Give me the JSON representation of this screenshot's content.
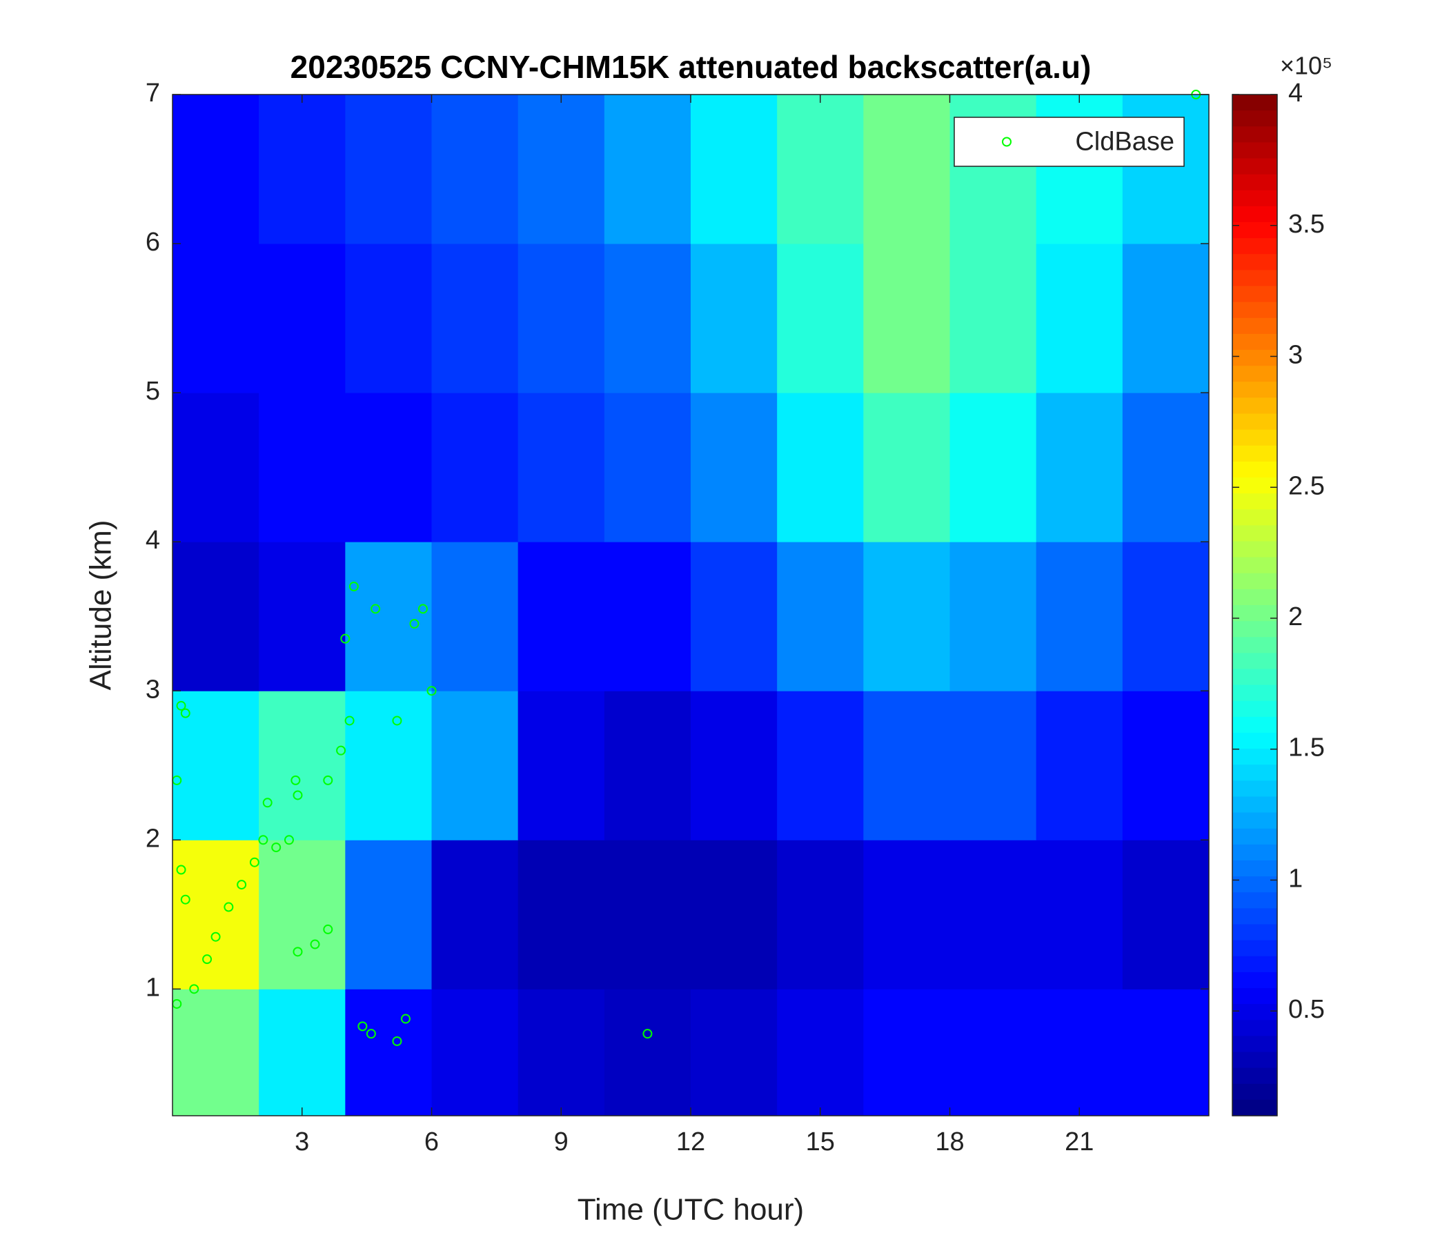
{
  "chart_data": {
    "type": "heatmap",
    "title": "20230525 CCNY-CHM15K attenuated backscatter(a.u)",
    "xlabel": "Time (UTC hour)",
    "ylabel": "Altitude (km)",
    "colormap": "jet",
    "clim": [
      0.1,
      4
    ],
    "cticks": [
      0.5,
      1,
      1.5,
      2,
      2.5,
      3,
      3.5,
      4
    ],
    "colorbar_multiplier": "×10⁵",
    "xlim": [
      0,
      24
    ],
    "xticks": [
      3,
      6,
      9,
      12,
      15,
      18,
      21
    ],
    "ylim": [
      0.15,
      7
    ],
    "yticks": [
      1,
      2,
      3,
      4,
      5,
      6,
      7
    ],
    "x_edges": [
      0,
      2,
      4,
      6,
      8,
      10,
      12,
      14,
      16,
      18,
      20,
      22,
      24
    ],
    "y_edges": [
      0.15,
      1,
      2,
      3,
      4,
      5,
      6,
      7
    ],
    "z": [
      [
        2.0,
        1.5,
        0.6,
        0.5,
        0.4,
        0.35,
        0.4,
        0.5,
        0.6,
        0.6,
        0.6,
        0.6
      ],
      [
        2.5,
        2.0,
        1.0,
        0.4,
        0.3,
        0.3,
        0.3,
        0.4,
        0.5,
        0.5,
        0.5,
        0.4
      ],
      [
        1.5,
        1.8,
        1.5,
        1.2,
        0.5,
        0.4,
        0.5,
        0.7,
        0.9,
        0.9,
        0.7,
        0.6
      ],
      [
        0.4,
        0.5,
        1.2,
        1.0,
        0.6,
        0.6,
        0.8,
        1.1,
        1.3,
        1.2,
        1.0,
        0.8
      ],
      [
        0.5,
        0.6,
        0.6,
        0.7,
        0.8,
        0.9,
        1.1,
        1.5,
        1.8,
        1.6,
        1.3,
        1.0
      ],
      [
        0.6,
        0.6,
        0.7,
        0.8,
        0.9,
        1.0,
        1.3,
        1.7,
        2.0,
        1.8,
        1.5,
        1.2
      ],
      [
        0.6,
        0.7,
        0.8,
        0.9,
        1.0,
        1.2,
        1.5,
        1.8,
        2.0,
        1.8,
        1.6,
        1.4
      ]
    ],
    "legend": "top-right",
    "series": [
      {
        "name": "CldBase",
        "color": "#00ff00",
        "x": [
          0.1,
          0.2,
          0.3,
          0.2,
          0.3,
          0.1,
          0.5,
          0.8,
          1.0,
          1.3,
          1.6,
          1.9,
          2.1,
          2.2,
          2.4,
          2.7,
          2.85,
          2.9,
          2.9,
          3.3,
          3.6,
          3.6,
          3.9,
          4.1,
          4.2,
          4.0,
          4.4,
          4.6,
          4.7,
          5.2,
          5.4,
          5.2,
          5.6,
          5.8,
          6.0,
          11.0,
          23.7
        ],
        "y": [
          2.4,
          2.9,
          2.85,
          1.8,
          1.6,
          0.9,
          1.0,
          1.2,
          1.35,
          1.55,
          1.7,
          1.85,
          2.0,
          2.25,
          1.95,
          2.0,
          2.4,
          2.3,
          1.25,
          1.3,
          1.4,
          2.4,
          2.6,
          2.8,
          3.7,
          3.35,
          0.75,
          0.7,
          3.55,
          0.65,
          0.8,
          2.8,
          3.45,
          3.55,
          3.0,
          0.7,
          7.0
        ]
      }
    ]
  }
}
